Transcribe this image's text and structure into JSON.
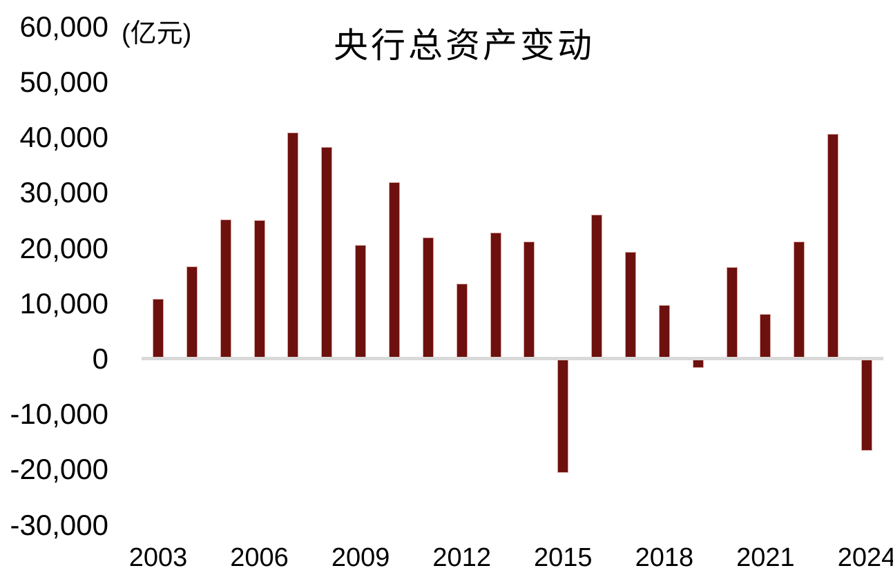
{
  "chart_data": {
    "type": "bar",
    "title": "央行总资产变动",
    "unit_label": "(亿元)",
    "xlabel": "",
    "ylabel": "亿元",
    "x": [
      2003,
      2004,
      2005,
      2006,
      2007,
      2008,
      2009,
      2010,
      2011,
      2012,
      2013,
      2014,
      2015,
      2016,
      2017,
      2018,
      2019,
      2020,
      2021,
      2022,
      2023,
      2024
    ],
    "values": [
      10800,
      16700,
      25200,
      25100,
      40900,
      38300,
      20600,
      31900,
      21900,
      13600,
      22800,
      21200,
      -20600,
      26100,
      19300,
      9700,
      -1600,
      16600,
      8100,
      21200,
      40700,
      -16600
    ],
    "ylim": [
      -30000,
      60000
    ],
    "ytick_step": 10000,
    "yticks": [
      {
        "value": 60000,
        "label": "60,000"
      },
      {
        "value": 50000,
        "label": "50,000"
      },
      {
        "value": 40000,
        "label": "40,000"
      },
      {
        "value": 30000,
        "label": "30,000"
      },
      {
        "value": 20000,
        "label": "20,000"
      },
      {
        "value": 10000,
        "label": "10,000"
      },
      {
        "value": 0,
        "label": "0"
      },
      {
        "value": -10000,
        "label": "-10,000"
      },
      {
        "value": -20000,
        "label": "-20,000"
      },
      {
        "value": -30000,
        "label": "-30,000"
      }
    ],
    "xticks": [
      {
        "year": 2003,
        "label": "2003"
      },
      {
        "year": 2006,
        "label": "2006"
      },
      {
        "year": 2009,
        "label": "2009"
      },
      {
        "year": 2012,
        "label": "2012"
      },
      {
        "year": 2015,
        "label": "2015"
      },
      {
        "year": 2018,
        "label": "2018"
      },
      {
        "year": 2021,
        "label": "2021"
      },
      {
        "year": 2024,
        "label": "2024"
      }
    ],
    "legend": "none",
    "grid": false,
    "colors": {
      "bar": "#6d110e",
      "bar_border": "#d9a49e",
      "zero_line": "#d9d9d9",
      "text": "#000000",
      "background": "#ffffff"
    }
  }
}
